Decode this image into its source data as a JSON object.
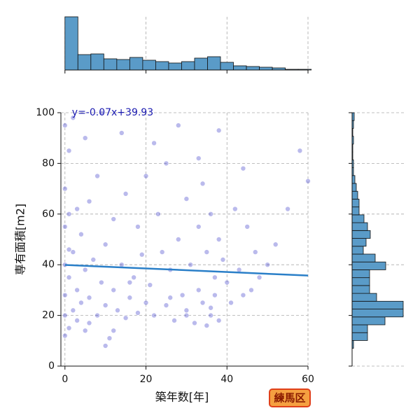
{
  "chart_data": {
    "type": "joint",
    "x_label": "築年数[年]",
    "y_label": "専有面積[m2]",
    "badge": "練馬区",
    "equation": "y=-0.07x+39.93",
    "xlim": [
      -1,
      60
    ],
    "ylim": [
      0,
      100
    ],
    "xticks": [
      0,
      20,
      40,
      60
    ],
    "yticks": [
      0,
      20,
      40,
      60,
      80,
      100
    ],
    "grid": true,
    "scatter": {
      "color": "#1a1ac0",
      "x": [
        0,
        0,
        0,
        0,
        0,
        0,
        0,
        1,
        1,
        1,
        1,
        2,
        2,
        3,
        3,
        4,
        4,
        5,
        5,
        6,
        6,
        7,
        8,
        8,
        9,
        10,
        10,
        11,
        12,
        12,
        13,
        14,
        15,
        15,
        16,
        17,
        18,
        18,
        19,
        20,
        21,
        22,
        23,
        24,
        25,
        25,
        26,
        27,
        28,
        29,
        30,
        30,
        31,
        32,
        33,
        33,
        34,
        34,
        35,
        35,
        36,
        36,
        37,
        37,
        38,
        38,
        39,
        40,
        41,
        42,
        43,
        44,
        45,
        46,
        47,
        48,
        50,
        52,
        55,
        58,
        60,
        2,
        5,
        9,
        14,
        22,
        28,
        33,
        38,
        44,
        1,
        3,
        6,
        12,
        30,
        36,
        20,
        26,
        16,
        10
      ],
      "values": [
        12,
        20,
        28,
        40,
        55,
        70,
        95,
        15,
        35,
        60,
        85,
        22,
        45,
        18,
        30,
        25,
        52,
        14,
        38,
        27,
        65,
        42,
        20,
        75,
        33,
        24,
        48,
        11,
        30,
        58,
        22,
        40,
        19,
        68,
        27,
        35,
        21,
        55,
        44,
        25,
        32,
        20,
        60,
        45,
        24,
        80,
        38,
        18,
        50,
        28,
        22,
        66,
        40,
        17,
        30,
        55,
        25,
        72,
        16,
        45,
        20,
        60,
        35,
        28,
        18,
        50,
        42,
        33,
        25,
        62,
        38,
        28,
        55,
        30,
        45,
        35,
        40,
        48,
        62,
        85,
        73,
        98,
        90,
        100,
        92,
        88,
        95,
        82,
        93,
        78,
        46,
        62,
        17,
        14,
        20,
        23,
        75,
        27,
        33,
        8
      ]
    },
    "regression": {
      "color": "#2a7fc8",
      "x": [
        0,
        60
      ],
      "values": [
        39.93,
        35.73
      ]
    },
    "top_hist": {
      "color": "#5a9bc8",
      "ylim": [
        0,
        760
      ],
      "bins": [
        0,
        3.2,
        6.4,
        9.6,
        12.8,
        16,
        19.2,
        22.4,
        25.6,
        28.8,
        32,
        35.2,
        38.4,
        41.6,
        44.8,
        48,
        51.2,
        54.4,
        57.6,
        60.8
      ],
      "values": [
        760,
        220,
        230,
        160,
        150,
        180,
        140,
        120,
        100,
        120,
        170,
        190,
        110,
        60,
        50,
        40,
        30,
        10,
        10
      ]
    },
    "right_hist": {
      "color": "#5a9bc8",
      "xlim": [
        0,
        750
      ],
      "bins": [
        7,
        10.1,
        13.2,
        16.3,
        19.4,
        22.5,
        25.6,
        28.7,
        31.8,
        34.9,
        38,
        41.1,
        44.2,
        47.3,
        50.4,
        53.5,
        56.6,
        59.7,
        62.8,
        65.9,
        69,
        72.1,
        75.2,
        78.3,
        81.4,
        84.5,
        87.6,
        90.7,
        93.8,
        96.9,
        100
      ],
      "values": [
        20,
        220,
        220,
        470,
        730,
        730,
        350,
        250,
        250,
        250,
        480,
        330,
        160,
        200,
        260,
        220,
        170,
        100,
        100,
        80,
        60,
        40,
        20,
        20,
        10,
        10,
        20,
        10,
        20,
        30
      ]
    }
  }
}
